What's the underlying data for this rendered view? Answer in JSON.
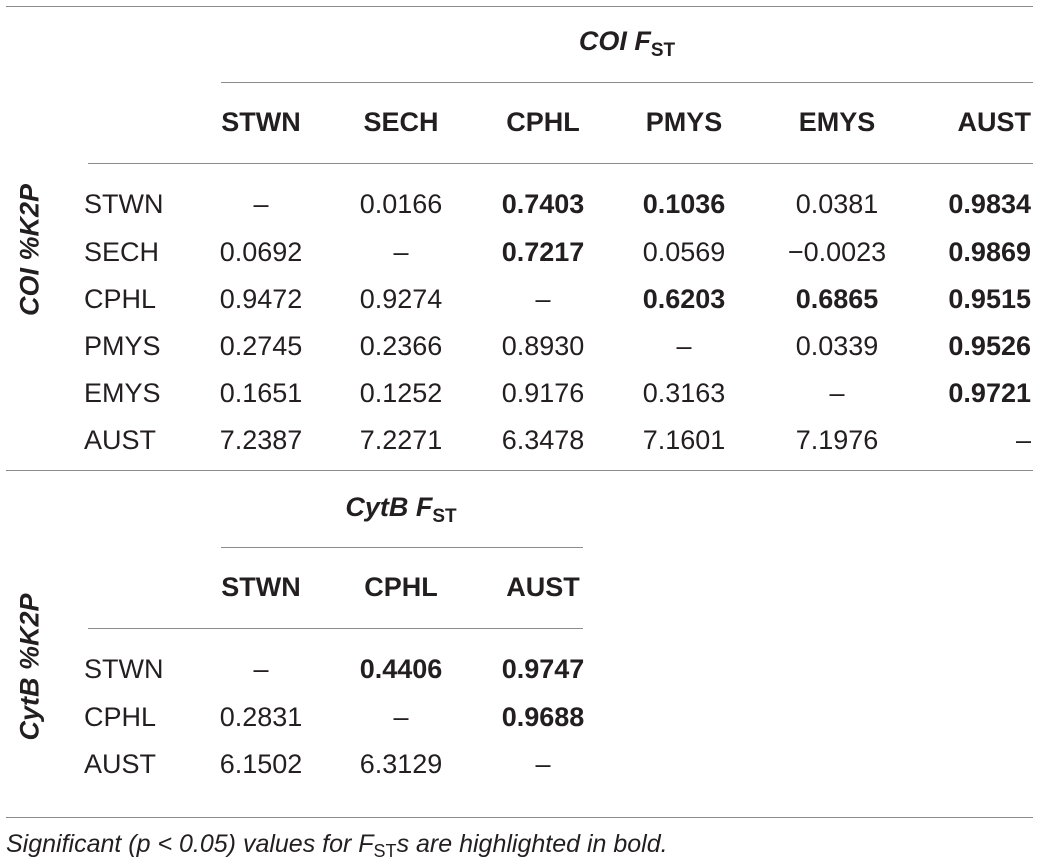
{
  "coi": {
    "title_main": "COI F",
    "title_sub": "ST",
    "side_label": "COI %K2P",
    "columns": [
      "STWN",
      "SECH",
      "CPHL",
      "PMYS",
      "EMYS",
      "AUST"
    ],
    "rows": [
      {
        "label": "STWN",
        "cells": [
          {
            "v": "–",
            "b": false
          },
          {
            "v": "0.0166",
            "b": false
          },
          {
            "v": "0.7403",
            "b": true
          },
          {
            "v": "0.1036",
            "b": true
          },
          {
            "v": "0.0381",
            "b": false
          },
          {
            "v": "0.9834",
            "b": true
          }
        ]
      },
      {
        "label": "SECH",
        "cells": [
          {
            "v": "0.0692",
            "b": false
          },
          {
            "v": "–",
            "b": false
          },
          {
            "v": "0.7217",
            "b": true
          },
          {
            "v": "0.0569",
            "b": false
          },
          {
            "v": "−0.0023",
            "b": false
          },
          {
            "v": "0.9869",
            "b": true
          }
        ]
      },
      {
        "label": "CPHL",
        "cells": [
          {
            "v": "0.9472",
            "b": false
          },
          {
            "v": "0.9274",
            "b": false
          },
          {
            "v": "–",
            "b": false
          },
          {
            "v": "0.6203",
            "b": true
          },
          {
            "v": "0.6865",
            "b": true
          },
          {
            "v": "0.9515",
            "b": true
          }
        ]
      },
      {
        "label": "PMYS",
        "cells": [
          {
            "v": "0.2745",
            "b": false
          },
          {
            "v": "0.2366",
            "b": false
          },
          {
            "v": "0.8930",
            "b": false
          },
          {
            "v": "–",
            "b": false
          },
          {
            "v": "0.0339",
            "b": false
          },
          {
            "v": "0.9526",
            "b": true
          }
        ]
      },
      {
        "label": "EMYS",
        "cells": [
          {
            "v": "0.1651",
            "b": false
          },
          {
            "v": "0.1252",
            "b": false
          },
          {
            "v": "0.9176",
            "b": false
          },
          {
            "v": "0.3163",
            "b": false
          },
          {
            "v": "–",
            "b": false
          },
          {
            "v": "0.9721",
            "b": true
          }
        ]
      },
      {
        "label": "AUST",
        "cells": [
          {
            "v": "7.2387",
            "b": false
          },
          {
            "v": "7.2271",
            "b": false
          },
          {
            "v": "6.3478",
            "b": false
          },
          {
            "v": "7.1601",
            "b": false
          },
          {
            "v": "7.1976",
            "b": false
          },
          {
            "v": "–",
            "b": false
          }
        ]
      }
    ]
  },
  "cytb": {
    "title_main": "CytB F",
    "title_sub": "ST",
    "side_label": "CytB %K2P",
    "columns": [
      "STWN",
      "CPHL",
      "AUST"
    ],
    "rows": [
      {
        "label": "STWN",
        "cells": [
          {
            "v": "–",
            "b": false
          },
          {
            "v": "0.4406",
            "b": true
          },
          {
            "v": "0.9747",
            "b": true
          }
        ]
      },
      {
        "label": "CPHL",
        "cells": [
          {
            "v": "0.2831",
            "b": false
          },
          {
            "v": "–",
            "b": false
          },
          {
            "v": "0.9688",
            "b": true
          }
        ]
      },
      {
        "label": "AUST",
        "cells": [
          {
            "v": "6.1502",
            "b": false
          },
          {
            "v": "6.3129",
            "b": false
          },
          {
            "v": "–",
            "b": false
          }
        ]
      }
    ]
  },
  "footnote": {
    "before": "Significant (p < 0.05) values for F",
    "sub": "ST",
    "after": "s are highlighted in bold."
  }
}
